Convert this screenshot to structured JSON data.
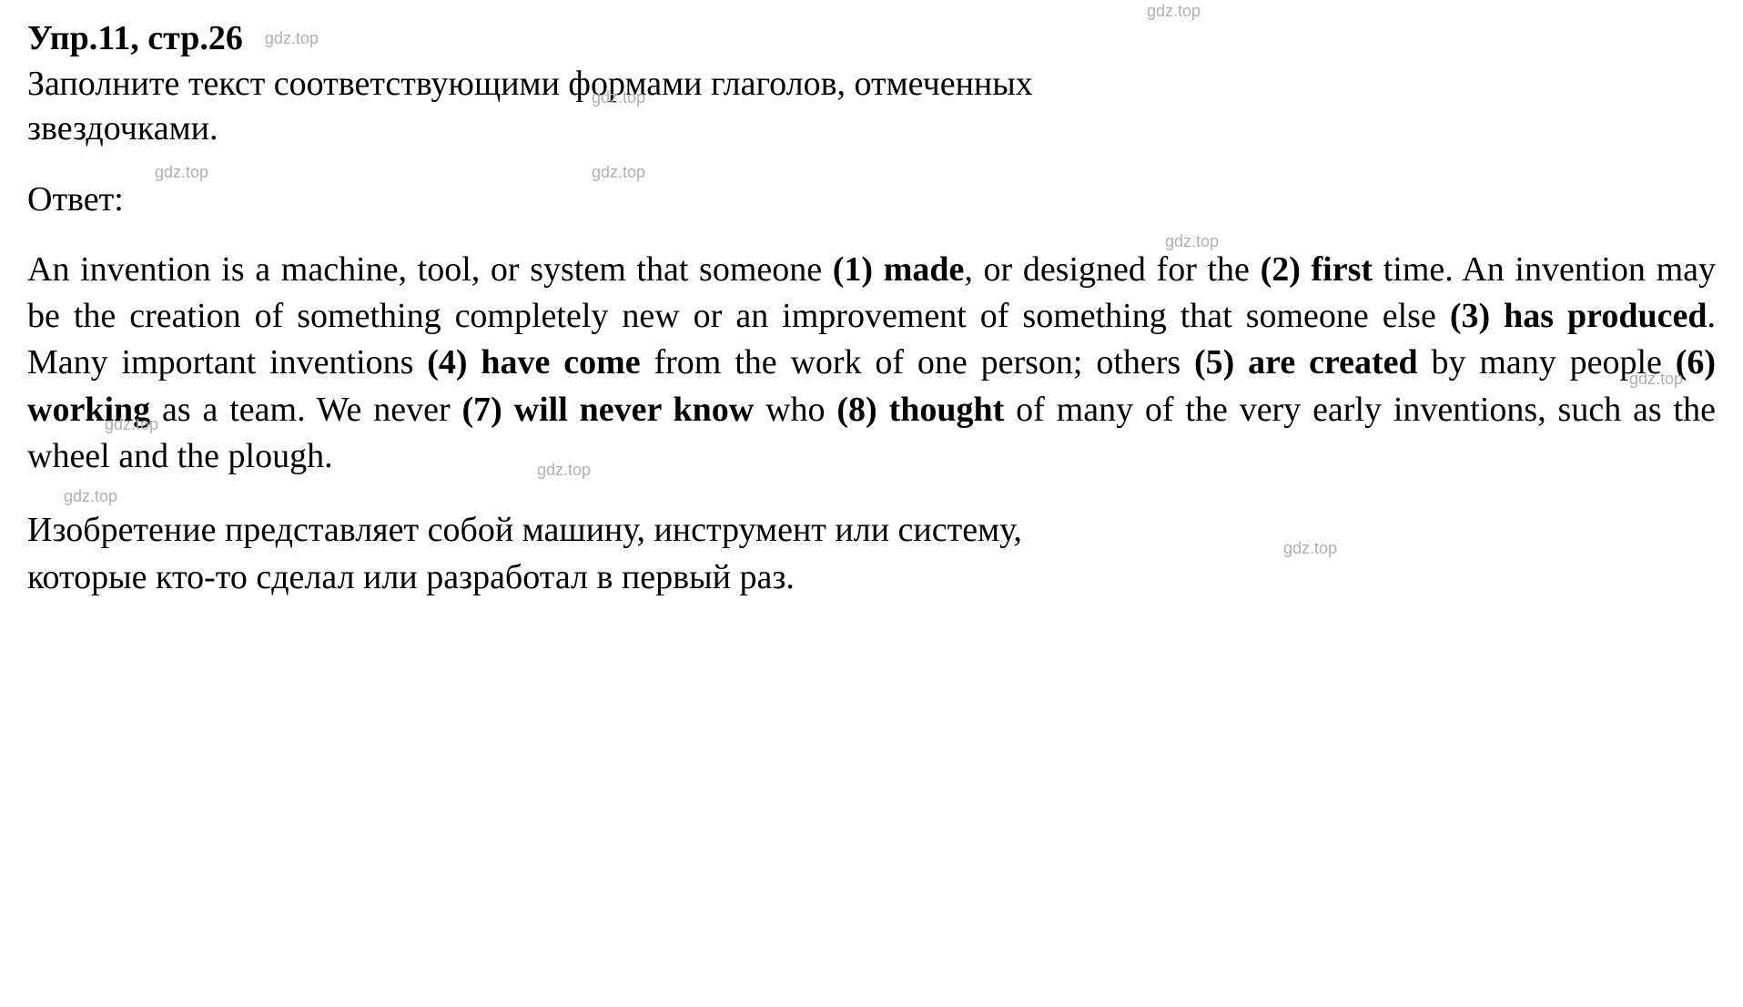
{
  "header": {
    "title": "Упр.11, стр.26",
    "watermark": "gdz.top"
  },
  "instruction": {
    "line1": "Заполните текст соответствующими формами глаголов, отмеченных",
    "line2": "звездочками."
  },
  "answerLabel": "Ответ:",
  "answerText": {
    "part1": "An invention is a machine, tool, or system that someone ",
    "bold1": "(1) made",
    "part2": ", or designed for the ",
    "bold2": "(2) first",
    "part3": " time. An invention may be the creation of something completely new or an improvement of something that someone else ",
    "bold3": "(3) has produced",
    "part4": ". Many important inventions ",
    "bold4": "(4) have come",
    "part5": " from the work of one person; others ",
    "bold5": "(5) are created",
    "part6": " by many people ",
    "bold6": "(6) working",
    "part7": " as a team. We never ",
    "bold7": "(7) will never know",
    "part8": " who ",
    "bold8": "(8) thought",
    "part9": " of many of the very early inventions, such as the wheel and the plough."
  },
  "translation": {
    "line1": "Изобретение представляет собой машину, инструмент или систему,",
    "line2": "которые кто-то сделал или разработал в первый раз."
  },
  "watermark": "gdz.top",
  "colors": {
    "text": "#000000",
    "watermark": "#b0b0b0",
    "background": "#ffffff"
  },
  "typography": {
    "mainFontSize": 38,
    "watermarkFontSize": 18,
    "mainFontFamily": "Times New Roman",
    "watermarkFontFamily": "Arial"
  }
}
